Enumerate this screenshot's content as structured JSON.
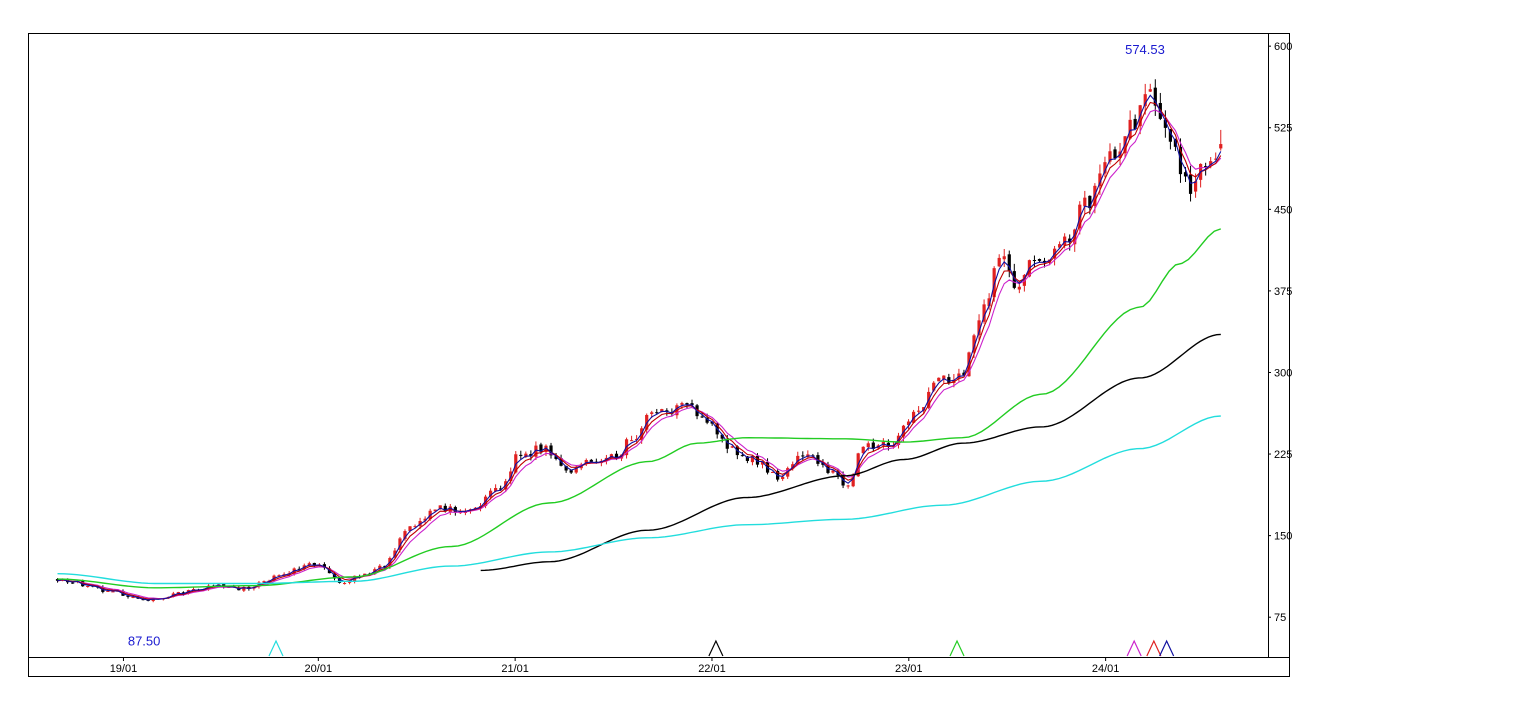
{
  "chart_data": {
    "type": "candlestick",
    "title": "",
    "xlabel": "",
    "ylabel": "",
    "ylim": [
      43,
      602
    ],
    "y_axis_position": "right",
    "y_ticks": [
      {
        "value": 75,
        "label": "75"
      },
      {
        "value": 150,
        "label": "150"
      },
      {
        "value": 225,
        "label": "225"
      },
      {
        "value": 300,
        "label": "300"
      },
      {
        "value": 375,
        "label": "375"
      },
      {
        "value": 450,
        "label": "450"
      },
      {
        "value": 525,
        "label": "525"
      },
      {
        "value": 600,
        "label": "600"
      }
    ],
    "x_ticks": [
      "19/01",
      "20/01",
      "21/01",
      "22/01",
      "23/01",
      "24/01"
    ],
    "x_tick_positions": [
      0.67,
      2.65,
      4.65,
      6.65,
      8.65,
      10.65
    ],
    "x_range": [
      -0.3,
      12.3
    ],
    "grid": false,
    "legend": "none",
    "colors": {
      "up": "#e02020",
      "down": "#000000",
      "ma_short": "#1010a0",
      "ma_fast": "#c00000",
      "ma_mid": "#cc22cc",
      "ma_green": "#22cc22",
      "ma_black": "#000000",
      "ma_cyan": "#22dddd"
    },
    "price_anchors": [
      [
        0.0,
        110
      ],
      [
        0.5,
        100
      ],
      [
        0.9,
        90
      ],
      [
        1.3,
        98
      ],
      [
        1.6,
        104
      ],
      [
        1.9,
        101
      ],
      [
        2.3,
        115
      ],
      [
        2.6,
        125
      ],
      [
        2.9,
        106
      ],
      [
        3.05,
        112
      ],
      [
        3.3,
        122
      ],
      [
        3.6,
        160
      ],
      [
        3.9,
        175
      ],
      [
        4.2,
        172
      ],
      [
        4.5,
        195
      ],
      [
        4.7,
        225
      ],
      [
        4.95,
        230
      ],
      [
        5.15,
        210
      ],
      [
        5.4,
        218
      ],
      [
        5.65,
        222
      ],
      [
        5.85,
        240
      ],
      [
        6.05,
        262
      ],
      [
        6.4,
        268
      ],
      [
        6.6,
        255
      ],
      [
        6.8,
        232
      ],
      [
        7.05,
        222
      ],
      [
        7.3,
        205
      ],
      [
        7.6,
        225
      ],
      [
        7.85,
        210
      ],
      [
        8.0,
        195
      ],
      [
        8.2,
        232
      ],
      [
        8.45,
        232
      ],
      [
        8.7,
        262
      ],
      [
        9.0,
        295
      ],
      [
        9.2,
        300
      ],
      [
        9.4,
        355
      ],
      [
        9.6,
        410
      ],
      [
        9.75,
        380
      ],
      [
        9.95,
        405
      ],
      [
        10.2,
        418
      ],
      [
        10.45,
        455
      ],
      [
        10.75,
        505
      ],
      [
        10.95,
        530
      ],
      [
        11.05,
        565
      ],
      [
        11.3,
        515
      ],
      [
        11.5,
        470
      ],
      [
        11.7,
        490
      ],
      [
        11.82,
        508
      ]
    ],
    "moving_averages": [
      {
        "key": "ma_green",
        "points": [
          [
            0.0,
            110
          ],
          [
            1.0,
            102
          ],
          [
            2.0,
            104
          ],
          [
            3.0,
            112
          ],
          [
            4.0,
            140
          ],
          [
            5.0,
            180
          ],
          [
            6.0,
            218
          ],
          [
            6.5,
            235
          ],
          [
            7.0,
            240
          ],
          [
            8.0,
            239
          ],
          [
            8.6,
            236
          ],
          [
            9.2,
            240
          ],
          [
            10.0,
            280
          ],
          [
            11.0,
            360
          ],
          [
            11.4,
            400
          ],
          [
            11.82,
            432
          ]
        ]
      },
      {
        "key": "ma_black",
        "points": [
          [
            4.3,
            118
          ],
          [
            5.0,
            126
          ],
          [
            6.0,
            155
          ],
          [
            7.0,
            185
          ],
          [
            8.0,
            205
          ],
          [
            8.6,
            220
          ],
          [
            9.2,
            235
          ],
          [
            10.0,
            250
          ],
          [
            11.0,
            295
          ],
          [
            11.82,
            335
          ]
        ]
      },
      {
        "key": "ma_cyan",
        "points": [
          [
            0.0,
            115
          ],
          [
            1.0,
            106
          ],
          [
            2.0,
            106
          ],
          [
            3.0,
            108
          ],
          [
            4.0,
            122
          ],
          [
            5.0,
            135
          ],
          [
            6.0,
            148
          ],
          [
            7.0,
            160
          ],
          [
            8.0,
            165
          ],
          [
            9.0,
            178
          ],
          [
            10.0,
            200
          ],
          [
            11.0,
            230
          ],
          [
            11.82,
            260
          ]
        ]
      }
    ],
    "annotations": [
      {
        "label": "574.53",
        "x": 11.05,
        "y": 574.53,
        "position": "above"
      },
      {
        "label": "87.50",
        "x": 0.88,
        "y": 87.5,
        "position": "below"
      }
    ],
    "signal_markers": [
      {
        "x": 2.22,
        "color": "#22dddd"
      },
      {
        "x": 6.69,
        "color": "#000000"
      },
      {
        "x": 9.14,
        "color": "#22cc22"
      },
      {
        "x": 10.94,
        "color": "#cc22cc"
      },
      {
        "x": 11.14,
        "color": "#e02020"
      },
      {
        "x": 11.27,
        "color": "#1010a0"
      }
    ]
  }
}
